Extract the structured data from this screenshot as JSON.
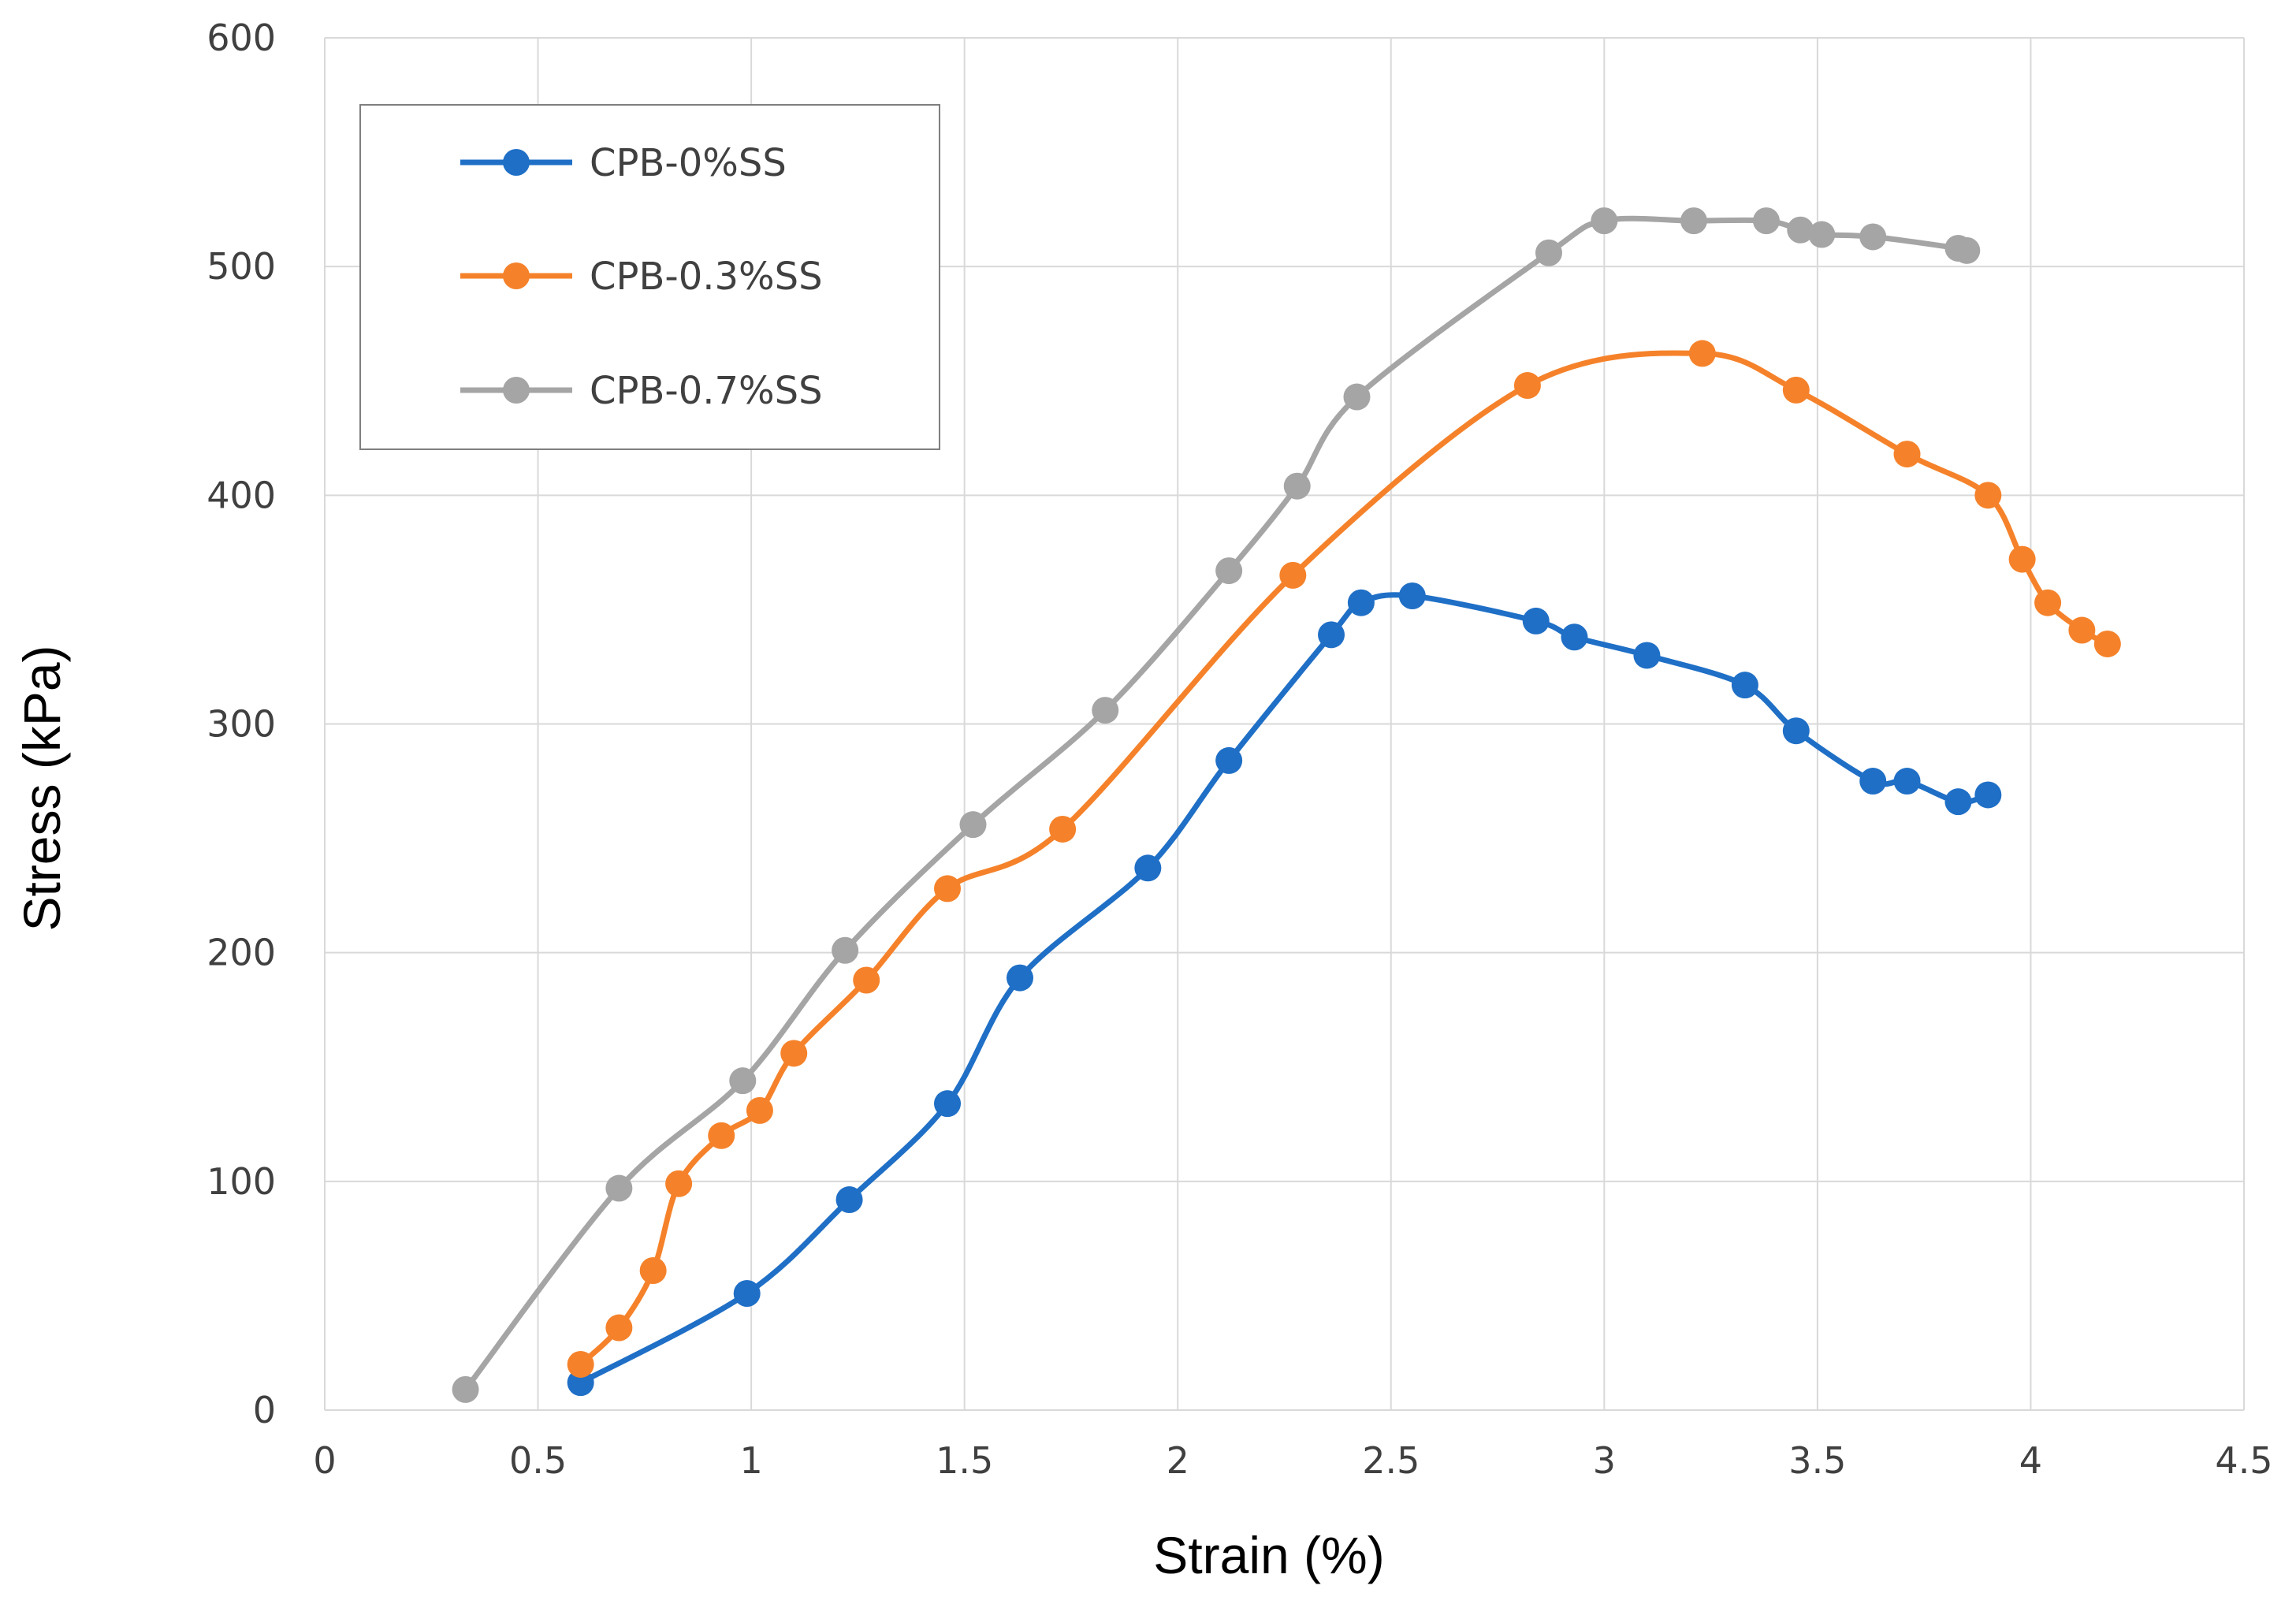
{
  "chart_data": {
    "type": "line",
    "title": "",
    "xlabel": "Strain (%)",
    "ylabel": "Stress (kPa)",
    "xlim": [
      0,
      4.5
    ],
    "ylim": [
      0,
      600
    ],
    "xticks": [
      0,
      0.5,
      1,
      1.5,
      2,
      2.5,
      3,
      3.5,
      4,
      4.5
    ],
    "xtick_labels": [
      "0",
      "0.5",
      "1",
      "1.5",
      "2",
      "2.5",
      "3",
      "3.5",
      "4",
      "4.5"
    ],
    "yticks": [
      0,
      100,
      200,
      300,
      400,
      500,
      600
    ],
    "ytick_labels": [
      "0",
      "100",
      "200",
      "300",
      "400",
      "500",
      "600"
    ],
    "grid": true,
    "legend_position": "top-left",
    "series": [
      {
        "name": "CPB-0%SS",
        "color": "#1F6FC6",
        "x": [
          0.6,
          0.99,
          1.23,
          1.46,
          1.63,
          1.93,
          2.12,
          2.36,
          2.43,
          2.55,
          2.84,
          2.93,
          3.1,
          3.33,
          3.45,
          3.63,
          3.71,
          3.83,
          3.9
        ],
        "y": [
          12,
          51,
          92,
          134,
          189,
          237,
          284,
          339,
          353,
          356,
          345,
          338,
          330,
          317,
          297,
          275,
          275,
          266,
          269
        ]
      },
      {
        "name": "CPB-0.3%SS",
        "color": "#F5822A",
        "x": [
          0.6,
          0.69,
          0.77,
          0.83,
          0.93,
          1.02,
          1.1,
          1.27,
          1.46,
          1.73,
          2.27,
          2.82,
          3.23,
          3.45,
          3.71,
          3.9,
          3.98,
          4.04,
          4.12,
          4.18
        ],
        "y": [
          20,
          36,
          61,
          99,
          120,
          131,
          156,
          188,
          228,
          254,
          365,
          448,
          462,
          446,
          418,
          400,
          372,
          353,
          341,
          335
        ]
      },
      {
        "name": "CPB-0.7%SS",
        "color": "#A5A5A5",
        "x": [
          0.33,
          0.69,
          0.98,
          1.22,
          1.52,
          1.83,
          2.12,
          2.28,
          2.42,
          2.87,
          3.0,
          3.21,
          3.38,
          3.46,
          3.51,
          3.63,
          3.83,
          3.85
        ],
        "y": [
          9,
          97,
          144,
          201,
          256,
          306,
          367,
          404,
          443,
          506,
          520,
          520,
          520,
          516,
          514,
          513,
          508,
          507
        ]
      }
    ]
  }
}
